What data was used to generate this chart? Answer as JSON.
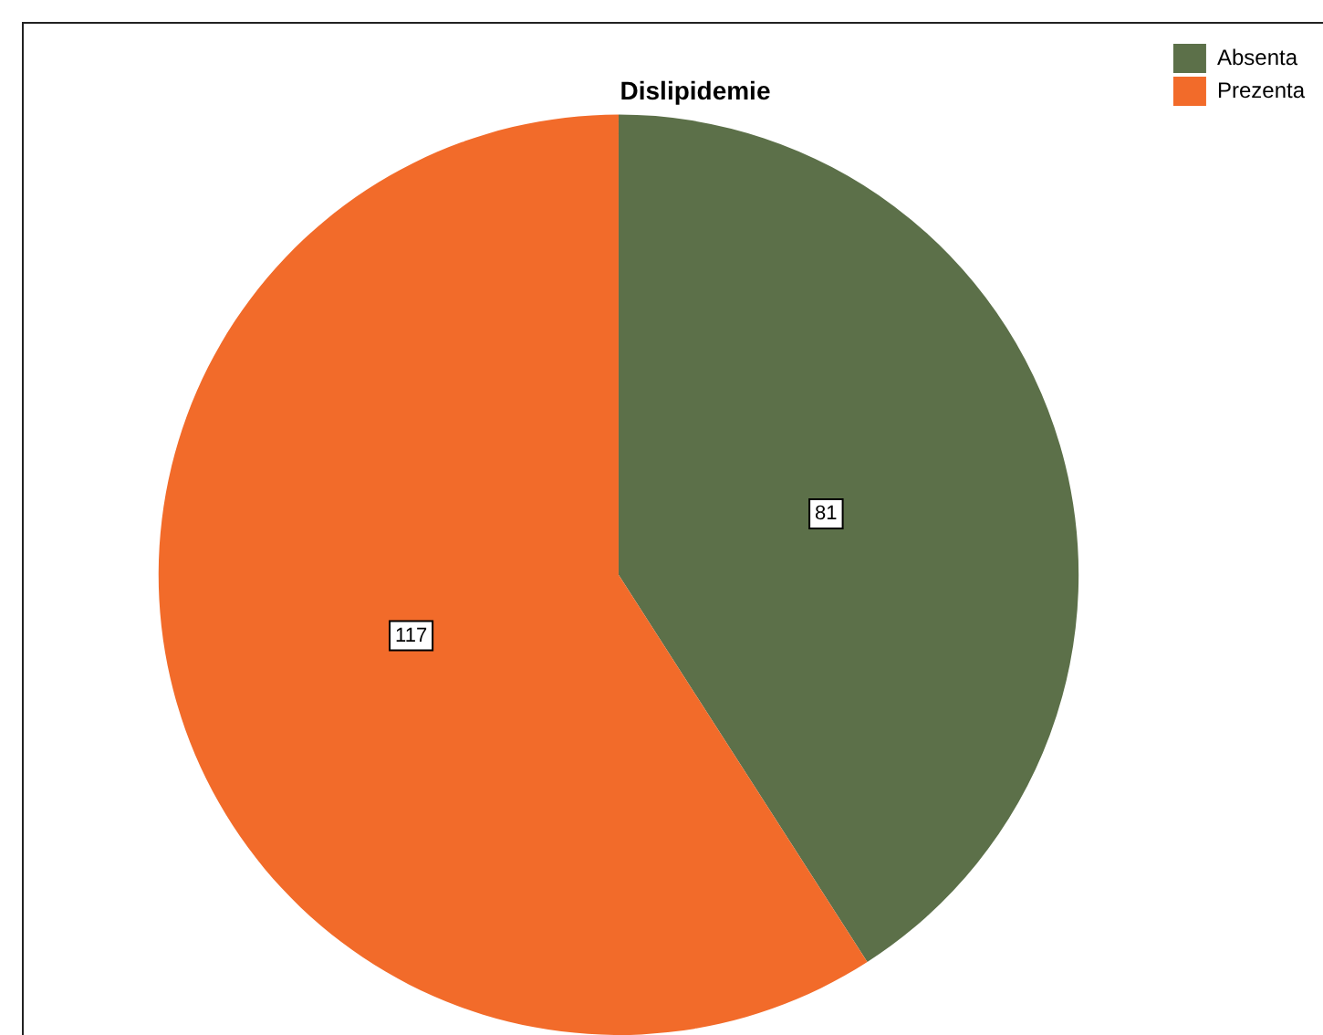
{
  "chart_data": {
    "type": "pie",
    "title": "Dislipidemie",
    "categories": [
      "Absenta",
      "Prezenta"
    ],
    "values": [
      81,
      117
    ],
    "colors": [
      "#5c7049",
      "#f26b2a"
    ],
    "data_labels": true,
    "legend": "top right"
  }
}
